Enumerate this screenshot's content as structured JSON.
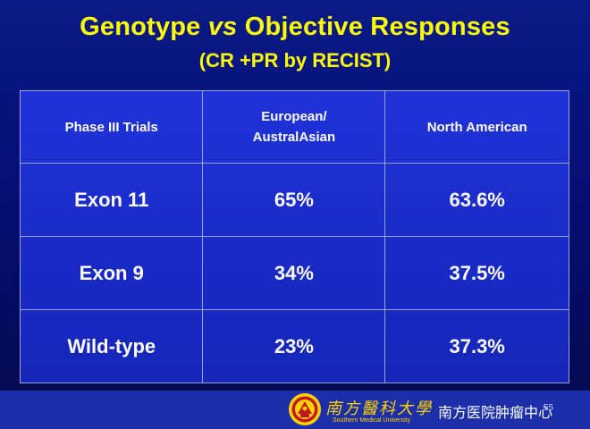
{
  "slide": {
    "title_prefix": "Genotype",
    "title_vs": "vs",
    "title_suffix": "Objective Responses",
    "subtitle": "(CR +PR by RECIST)"
  },
  "table": {
    "headers": [
      "Phase III Trials",
      "European/",
      "AustralAsian",
      "North American"
    ],
    "rows": [
      {
        "label": "Exon 11",
        "european": "65%",
        "north_american": "63.6%"
      },
      {
        "label": "Exon 9",
        "european": "34%",
        "north_american": "37.5%"
      },
      {
        "label": "Wild-type",
        "european": "23%",
        "north_american": "37.3%"
      }
    ]
  },
  "footer": {
    "university_name": "南方醫科大學",
    "university_english": "Southern Medical University",
    "department": "南方医院肿瘤中心",
    "page_number": "55"
  },
  "colors": {
    "title": "#ffff00",
    "table_fill": "#1a2bc8",
    "footer_bar": "#1c2fa8",
    "logo_gold": "#ffd200",
    "logo_red": "#c0181c"
  }
}
